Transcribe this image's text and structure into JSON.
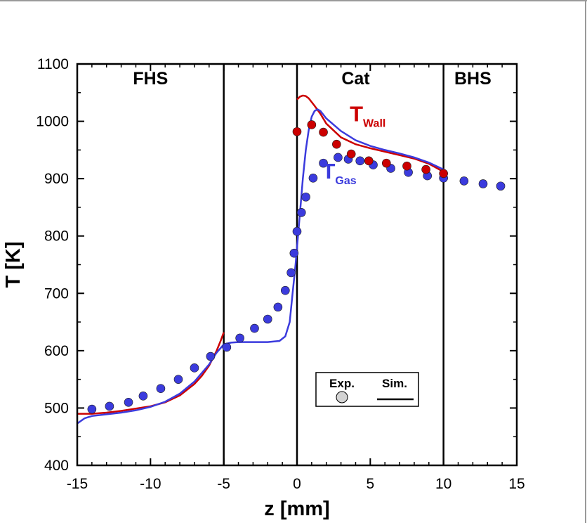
{
  "chart_data": {
    "type": "line",
    "xlabel": "z [mm]",
    "ylabel": "T  [K]",
    "xlim": [
      -15,
      15
    ],
    "ylim": [
      400,
      1100
    ],
    "xticks": [
      -15,
      -10,
      -5,
      0,
      5,
      10,
      15
    ],
    "yticks": [
      400,
      500,
      600,
      700,
      800,
      900,
      1000,
      1100
    ],
    "region_boundaries": [
      -5,
      0,
      10
    ],
    "regions": [
      {
        "label": "FHS",
        "x": -10
      },
      {
        "label": "Cat",
        "x": 4
      },
      {
        "label": "BHS",
        "x": 12
      }
    ],
    "legend": {
      "exp_label": "Exp.",
      "sim_label": "Sim.",
      "position": "bottom-right"
    },
    "series": [
      {
        "name": "T",
        "subscript": "Wall",
        "label_position": [
          3.6,
          1000
        ],
        "color": "#cc0000",
        "simulation": {
          "x": [
            -15,
            -14,
            -13,
            -12,
            -11,
            -10,
            -9,
            -8,
            -7,
            -6.5,
            -6,
            -5.5,
            -5.2,
            -5,
            0,
            0.2,
            0.4,
            0.6,
            0.8,
            1.2,
            1.6,
            2,
            3,
            4,
            5,
            6,
            7,
            8,
            9,
            10
          ],
          "y": [
            490,
            490,
            492,
            495,
            499,
            503,
            510,
            522,
            542,
            556,
            574,
            599,
            618,
            632,
            1038,
            1043,
            1045,
            1044,
            1040,
            1027,
            1013,
            996,
            972,
            960,
            953,
            947,
            941,
            935,
            926,
            912
          ]
        },
        "experiment": {
          "x": [
            0,
            1,
            1.8,
            2.7,
            3.7,
            4.9,
            6.1,
            7.5,
            8.8,
            10
          ],
          "y": [
            982,
            994,
            981,
            960,
            943,
            931,
            927,
            922,
            916,
            909
          ]
        }
      },
      {
        "name": "T",
        "subscript": "Gas",
        "label_position": [
          1.7,
          900
        ],
        "color": "#3b3bdd",
        "simulation": {
          "x": [
            -15,
            -14.5,
            -14,
            -13,
            -12,
            -11,
            -10,
            -9,
            -8,
            -7,
            -6,
            -5.5,
            -5,
            -4.5,
            -4,
            -3,
            -2,
            -1.2,
            -0.8,
            -0.5,
            -0.3,
            -0.1,
            0,
            0.2,
            0.4,
            0.6,
            0.8,
            1,
            1.2,
            1.4,
            1.6,
            2,
            3,
            4,
            5,
            6,
            7,
            8,
            9,
            10
          ],
          "y": [
            473,
            482,
            486,
            489,
            492,
            496,
            502,
            511,
            525,
            546,
            576,
            596,
            611,
            614,
            615,
            615,
            615,
            617,
            625,
            650,
            700,
            750,
            780,
            840,
            900,
            950,
            985,
            1008,
            1018,
            1021,
            1018,
            1005,
            983,
            967,
            957,
            950,
            944,
            937,
            928,
            916
          ]
        },
        "experiment": {
          "x": [
            -14,
            -12.8,
            -11.5,
            -10.5,
            -9.3,
            -8.1,
            -7,
            -5.9,
            -4.8,
            -3.9,
            -2.9,
            -2,
            -1.3,
            -0.8,
            -0.4,
            -0.2,
            0,
            0.3,
            0.6,
            1.1,
            1.8,
            2.8,
            3.5,
            4.3,
            5.2,
            6.4,
            7.6,
            8.9,
            10,
            11.4,
            12.7,
            13.9
          ],
          "y": [
            498,
            503,
            510,
            521,
            534,
            550,
            570,
            590,
            606,
            622,
            639,
            655,
            676,
            705,
            736,
            770,
            808,
            841,
            868,
            901,
            927,
            937,
            934,
            931,
            924,
            918,
            911,
            905,
            901,
            896,
            891,
            887
          ]
        }
      }
    ]
  }
}
